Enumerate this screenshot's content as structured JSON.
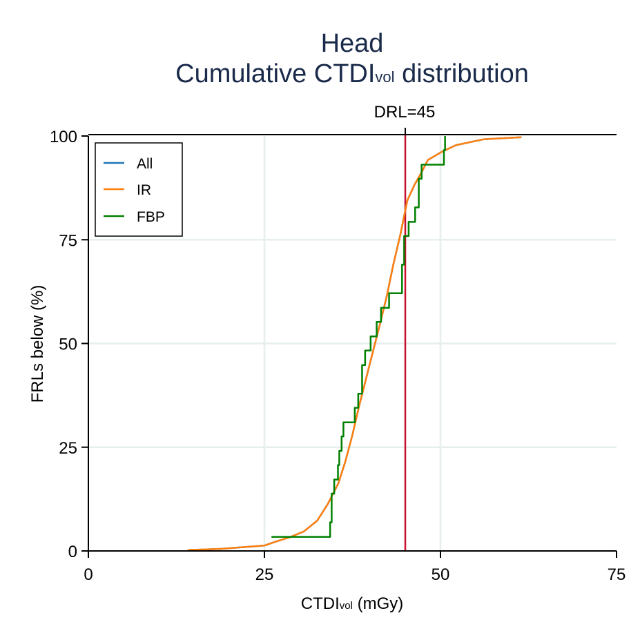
{
  "chart_data": {
    "type": "line",
    "title": "Head",
    "subtitle_main": "Cumulative CTDI",
    "subtitle_sub": "vol",
    "subtitle_rest": " distribution",
    "xlabel_main": "CTDI",
    "xlabel_sub": "vol",
    "xlabel_rest": " (mGy)",
    "ylabel": "FRLs below (%)",
    "xlim": [
      0,
      75
    ],
    "ylim": [
      0,
      100
    ],
    "xticks": [
      "0",
      "25",
      "50",
      "75"
    ],
    "yticks": [
      "0",
      "25",
      "50",
      "75",
      "100"
    ],
    "grid": true,
    "legend_position": "top-left",
    "reference_line": {
      "label": "DRL=45",
      "x": 45,
      "color": "#c8102e"
    },
    "series": [
      {
        "name": "All",
        "color": "#1f77b4",
        "step": false,
        "points": [
          [
            14.1,
            0.2
          ],
          [
            18.8,
            0.5
          ],
          [
            25,
            1.3
          ],
          [
            26.7,
            2.3
          ],
          [
            28.6,
            3.3
          ],
          [
            30.6,
            4.7
          ],
          [
            32.5,
            7.3
          ],
          [
            34.0,
            11.3
          ],
          [
            35.5,
            16.3
          ],
          [
            36.5,
            21.6
          ],
          [
            37.5,
            28
          ],
          [
            38.4,
            34.6
          ],
          [
            39.4,
            41.3
          ],
          [
            40.4,
            48
          ],
          [
            41.4,
            54.6
          ],
          [
            42.4,
            61.6
          ],
          [
            43.3,
            69
          ],
          [
            44.3,
            76.2
          ],
          [
            45.3,
            84.5
          ],
          [
            46.3,
            88.2
          ],
          [
            47.3,
            91.2
          ],
          [
            48.2,
            94.2
          ],
          [
            50.2,
            96.2
          ],
          [
            52.2,
            97.8
          ],
          [
            56.1,
            99.2
          ],
          [
            61.5,
            99.7
          ]
        ]
      },
      {
        "name": "IR",
        "color": "#ff7f0e",
        "step": false,
        "points": [
          [
            14.1,
            0.2
          ],
          [
            18.8,
            0.5
          ],
          [
            25,
            1.3
          ],
          [
            26.7,
            2.3
          ],
          [
            28.6,
            3.3
          ],
          [
            30.6,
            4.7
          ],
          [
            32.5,
            7.3
          ],
          [
            34.0,
            11.3
          ],
          [
            35.5,
            16.3
          ],
          [
            36.5,
            21.6
          ],
          [
            37.5,
            28
          ],
          [
            38.4,
            34.6
          ],
          [
            39.4,
            41.3
          ],
          [
            40.4,
            48
          ],
          [
            41.4,
            54.6
          ],
          [
            42.4,
            61.6
          ],
          [
            43.3,
            69
          ],
          [
            44.3,
            76.2
          ],
          [
            45.3,
            84.5
          ],
          [
            46.3,
            88.2
          ],
          [
            47.3,
            91.2
          ],
          [
            48.2,
            94.2
          ],
          [
            50.2,
            96.2
          ],
          [
            52.2,
            97.8
          ],
          [
            56.1,
            99.2
          ],
          [
            61.5,
            99.7
          ]
        ]
      },
      {
        "name": "FBP",
        "color": "#008000",
        "step": true,
        "points": [
          [
            26.0,
            3.4
          ],
          [
            34.33,
            6.9
          ],
          [
            34.55,
            13.8
          ],
          [
            34.91,
            17.2
          ],
          [
            35.44,
            20.7
          ],
          [
            35.63,
            24.1
          ],
          [
            35.96,
            27.6
          ],
          [
            36.22,
            31.0
          ],
          [
            37.83,
            34.5
          ],
          [
            38.32,
            37.9
          ],
          [
            38.87,
            44.8
          ],
          [
            39.3,
            48.3
          ],
          [
            40.08,
            51.7
          ],
          [
            40.94,
            55.2
          ],
          [
            41.56,
            58.6
          ],
          [
            42.7,
            62.1
          ],
          [
            44.54,
            69.0
          ],
          [
            44.84,
            75.9
          ],
          [
            45.48,
            79.3
          ],
          [
            46.4,
            82.8
          ],
          [
            46.92,
            89.7
          ],
          [
            47.32,
            93.1
          ],
          [
            50.49,
            96.6
          ],
          [
            50.65,
            100
          ]
        ]
      }
    ]
  }
}
